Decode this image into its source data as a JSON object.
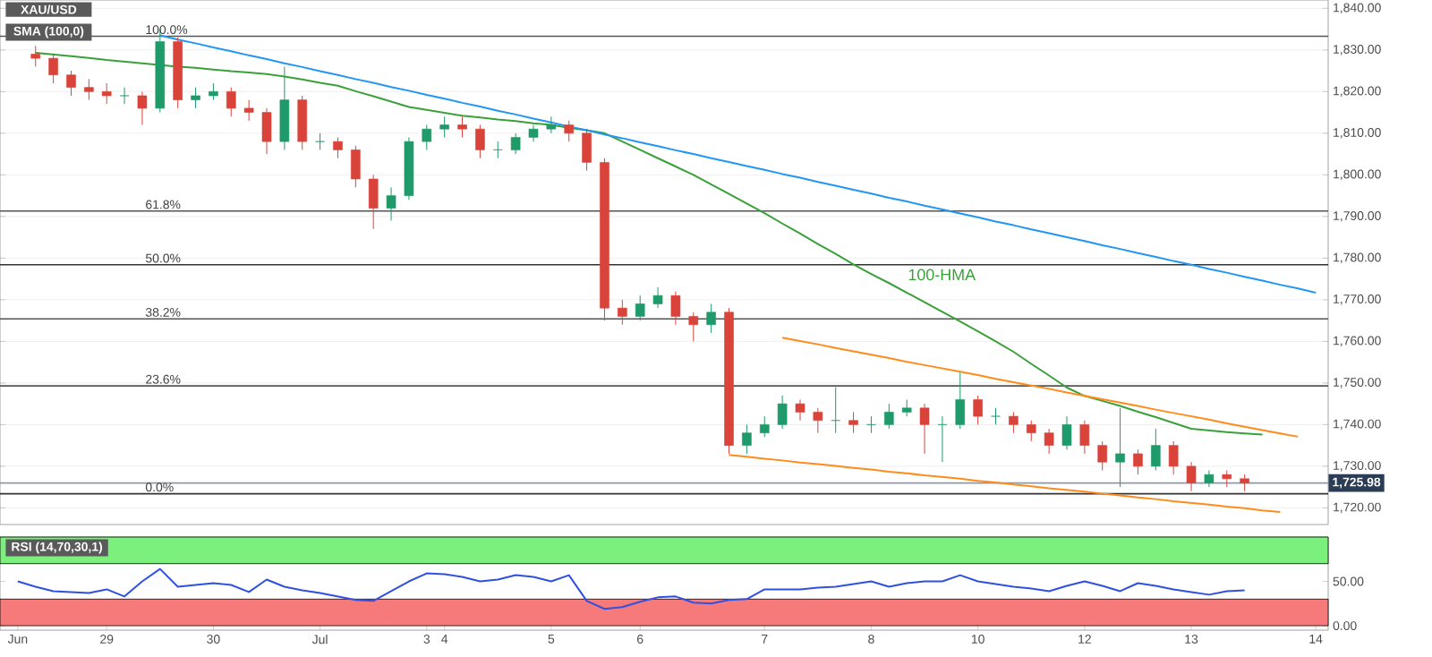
{
  "chart_data": [
    {
      "type": "candlestick",
      "categories": [
        null,
        null,
        null,
        null,
        null,
        null,
        null,
        null,
        null,
        null,
        null,
        null,
        null,
        null,
        null,
        null,
        null,
        null,
        null,
        null,
        null,
        null,
        null,
        null,
        null,
        null,
        null,
        null,
        null,
        null,
        null,
        null,
        null,
        null,
        null,
        null,
        null,
        null,
        null,
        null,
        null,
        null,
        null,
        null,
        null,
        null,
        null,
        null,
        null,
        null,
        null,
        null,
        null,
        null,
        null,
        null,
        null,
        null,
        null,
        null,
        null,
        null,
        null,
        null,
        null,
        null,
        null,
        null,
        null,
        null,
        null,
        null,
        null
      ],
      "ohlc": [
        [
          1829,
          1831,
          1826,
          1828
        ],
        [
          1828,
          1829,
          1822,
          1824
        ],
        [
          1824,
          1825,
          1819,
          1821
        ],
        [
          1821,
          1823,
          1818,
          1820
        ],
        [
          1820,
          1822,
          1817,
          1819
        ],
        [
          1819,
          1821,
          1817,
          1819
        ],
        [
          1819,
          1820,
          1812,
          1816
        ],
        [
          1816,
          1835,
          1815,
          1832
        ],
        [
          1832,
          1833,
          1816,
          1818
        ],
        [
          1818,
          1821,
          1816,
          1819
        ],
        [
          1819,
          1822,
          1818,
          1820
        ],
        [
          1820,
          1821,
          1814,
          1816
        ],
        [
          1816,
          1818,
          1813,
          1815
        ],
        [
          1815,
          1816,
          1805,
          1808
        ],
        [
          1808,
          1826,
          1806,
          1818
        ],
        [
          1818,
          1819,
          1806,
          1808
        ],
        [
          1808,
          1810,
          1806,
          1808
        ],
        [
          1808,
          1809,
          1804,
          1806
        ],
        [
          1806,
          1807,
          1797,
          1799
        ],
        [
          1799,
          1800,
          1787,
          1792
        ],
        [
          1792,
          1797,
          1789,
          1795
        ],
        [
          1795,
          1809,
          1794,
          1808
        ],
        [
          1808,
          1812,
          1806,
          1811
        ],
        [
          1811,
          1814,
          1809,
          1812
        ],
        [
          1812,
          1814,
          1809,
          1811
        ],
        [
          1811,
          1812,
          1804,
          1806
        ],
        [
          1806,
          1808,
          1804,
          1806
        ],
        [
          1806,
          1810,
          1805,
          1809
        ],
        [
          1809,
          1812,
          1808,
          1811
        ],
        [
          1811,
          1814,
          1810,
          1812
        ],
        [
          1812,
          1813,
          1808,
          1810
        ],
        [
          1810,
          1811,
          1801,
          1803
        ],
        [
          1803,
          1804,
          1765,
          1768
        ],
        [
          1768,
          1770,
          1764,
          1766
        ],
        [
          1766,
          1771,
          1765,
          1769
        ],
        [
          1769,
          1773,
          1768,
          1771
        ],
        [
          1771,
          1772,
          1764,
          1766
        ],
        [
          1766,
          1767,
          1760,
          1764
        ],
        [
          1764,
          1769,
          1762,
          1767
        ],
        [
          1767,
          1768,
          1733,
          1735
        ],
        [
          1735,
          1740,
          1733,
          1738
        ],
        [
          1738,
          1742,
          1737,
          1740
        ],
        [
          1740,
          1747,
          1739,
          1745
        ],
        [
          1745,
          1746,
          1741,
          1743
        ],
        [
          1743,
          1744,
          1738,
          1741
        ],
        [
          1741,
          1749,
          1738,
          1741
        ],
        [
          1741,
          1743,
          1738,
          1740
        ],
        [
          1740,
          1742,
          1738,
          1740
        ],
        [
          1740,
          1745,
          1739,
          1743
        ],
        [
          1743,
          1746,
          1742,
          1744
        ],
        [
          1744,
          1745,
          1733,
          1740
        ],
        [
          1740,
          1742,
          1731,
          1740
        ],
        [
          1740,
          1752.5,
          1739,
          1746
        ],
        [
          1746,
          1747,
          1740,
          1742
        ],
        [
          1742,
          1744,
          1740,
          1742
        ],
        [
          1742,
          1743,
          1738,
          1740
        ],
        [
          1740,
          1741,
          1736,
          1738
        ],
        [
          1738,
          1739,
          1733,
          1735
        ],
        [
          1735,
          1742,
          1734,
          1740
        ],
        [
          1740,
          1741,
          1733,
          1735
        ],
        [
          1735,
          1736,
          1729,
          1731
        ],
        [
          1731,
          1744,
          1725,
          1733
        ],
        [
          1733,
          1734,
          1728,
          1730
        ],
        [
          1730,
          1739,
          1729,
          1735
        ],
        [
          1735,
          1736,
          1728,
          1730
        ],
        [
          1730,
          1731,
          1724,
          1726
        ],
        [
          1726,
          1729,
          1725,
          1728
        ],
        [
          1728,
          1729,
          1725,
          1727
        ],
        [
          1727,
          1728,
          1724,
          1725.98
        ],
        null,
        null,
        null,
        null
      ],
      "series": [
        {
          "type": "line",
          "name": "100-HMA",
          "color": "#3aa13a",
          "values": [
            1829.3,
            1828.9,
            1828.5,
            1828.1,
            1827.6,
            1827.2,
            1826.8,
            1826.4,
            1826.0,
            1825.7,
            1825.3,
            1824.9,
            1824.6,
            1824.2,
            1823.6,
            1822.9,
            1822.1,
            1821.4,
            1820.1,
            1818.9,
            1817.6,
            1816.3,
            1815.6,
            1814.9,
            1814.2,
            1813.8,
            1813.3,
            1812.9,
            1812.4,
            1812,
            1811.3,
            1810.7,
            1810,
            1808,
            1806,
            1804,
            1802,
            1800,
            1797.7,
            1795.4,
            1793.1,
            1790.8,
            1788.3,
            1785.9,
            1783.4,
            1781,
            1778.5,
            1776.2,
            1774,
            1771.7,
            1769.4,
            1767.1,
            1764.8,
            1762.4,
            1760,
            1757.5,
            1754.6,
            1751.8,
            1748.9,
            1746.9,
            1745.7,
            1744.5,
            1743.1,
            1741.8,
            1740.4,
            1739,
            1738.6,
            1738.2,
            1737.9,
            1737.6,
            null,
            null,
            null
          ]
        },
        {
          "type": "line",
          "color": "#2196f3",
          "values": [
            null,
            null,
            null,
            null,
            null,
            null,
            null,
            1833.5,
            1832.5,
            1831.6,
            1830.6,
            1829.7,
            1828.7,
            1827.8,
            1826.8,
            1825.9,
            1824.9,
            1824.0,
            1823.0,
            1822.1,
            1821.1,
            1820.2,
            1819.2,
            1818.3,
            1817.3,
            1816.4,
            1815.4,
            1814.5,
            1813.5,
            1812.6,
            1811.6,
            1810.7,
            1809.7,
            1808.8,
            1807.8,
            1806.9,
            1805.9,
            1805.0,
            1804.0,
            1803.1,
            1802.1,
            1801.2,
            1800.2,
            1799.3,
            1798.3,
            1797.4,
            1796.4,
            1795.5,
            1794.5,
            1793.6,
            1792.6,
            1791.7,
            1790.7,
            1789.8,
            1788.8,
            1787.9,
            1786.9,
            1786.0,
            1785.0,
            1784.1,
            1783.1,
            1782.2,
            1781.2,
            1780.3,
            1779.3,
            1778.4,
            1777.4,
            1776.5,
            1775.5,
            1774.6,
            1773.6,
            1772.7,
            1771.7
          ]
        },
        {
          "type": "line",
          "color": "#ff8c1a",
          "values": [
            null,
            null,
            null,
            null,
            null,
            null,
            null,
            null,
            null,
            null,
            null,
            null,
            null,
            null,
            null,
            null,
            null,
            null,
            null,
            null,
            null,
            null,
            null,
            null,
            null,
            null,
            null,
            null,
            null,
            null,
            null,
            null,
            null,
            null,
            null,
            null,
            null,
            null,
            null,
            null,
            null,
            null,
            1760.9,
            1760.1,
            1759.3,
            1758.4,
            1757.6,
            1756.8,
            1756.0,
            1755.1,
            1754.3,
            1753.5,
            1752.7,
            1751.9,
            1751.0,
            1750.2,
            1749.4,
            1748.6,
            1747.7,
            1746.9,
            1746.1,
            1745.3,
            1744.5,
            1743.6,
            1742.8,
            1742.0,
            1741.2,
            1740.3,
            1739.5,
            1738.7,
            1737.9,
            1737.1,
            null
          ]
        },
        {
          "type": "line",
          "color": "#ff8c1a",
          "values": [
            null,
            null,
            null,
            null,
            null,
            null,
            null,
            null,
            null,
            null,
            null,
            null,
            null,
            null,
            null,
            null,
            null,
            null,
            null,
            null,
            null,
            null,
            null,
            null,
            null,
            null,
            null,
            null,
            null,
            null,
            null,
            null,
            null,
            null,
            null,
            null,
            null,
            null,
            null,
            1732.7,
            1732.3,
            1731.8,
            1731.4,
            1730.9,
            1730.5,
            1730.1,
            1729.6,
            1729.2,
            1728.7,
            1728.3,
            1727.8,
            1727.4,
            1727.0,
            1726.5,
            1726.1,
            1725.6,
            1725.2,
            1724.7,
            1724.3,
            1723.9,
            1723.4,
            1723.0,
            1722.5,
            1722.1,
            1721.6,
            1721.2,
            1720.8,
            1720.3,
            1719.9,
            1719.4,
            1719.0,
            null,
            null
          ]
        }
      ],
      "ref_lines": [
        {
          "axis": "y",
          "value": 1833.3,
          "color": "#555555"
        },
        {
          "axis": "y",
          "value": 1791.3,
          "color": "#555555"
        },
        {
          "axis": "y",
          "value": 1778.4,
          "color": "#333333"
        },
        {
          "axis": "y",
          "value": 1765.4,
          "color": "#555555"
        },
        {
          "axis": "y",
          "value": 1749.3,
          "color": "#555555"
        },
        {
          "axis": "y",
          "value": 1723.4,
          "color": "#333333"
        },
        {
          "axis": "y",
          "value": 1725.98,
          "label": "1,725.98",
          "color": "#8a9bb0"
        }
      ],
      "annotations": [
        "XAU/USD",
        "SMA (100,0)",
        {
          "text": "100.0%",
          "y": 1833.3
        },
        {
          "text": "61.8%",
          "y": 1791.3
        },
        {
          "text": "50.0%",
          "y": 1778.4
        },
        {
          "text": "38.2%",
          "y": 1765.4
        },
        {
          "text": "23.6%",
          "y": 1749.3
        },
        {
          "text": "0.0%",
          "y": 1723.4
        }
      ],
      "ylim": [
        1716,
        1842
      ],
      "yticks": [
        {
          "value": 1720,
          "label": "1,720.00"
        },
        {
          "value": 1730,
          "label": "1,730.00"
        },
        {
          "value": 1740,
          "label": "1,740.00"
        },
        {
          "value": 1750,
          "label": "1,750.00"
        },
        {
          "value": 1760,
          "label": "1,760.00"
        },
        {
          "value": 1770,
          "label": "1,770.00"
        },
        {
          "value": 1780,
          "label": "1,780.00"
        },
        {
          "value": 1790,
          "label": "1,790.00"
        },
        {
          "value": 1800,
          "label": "1,800.00"
        },
        {
          "value": 1810,
          "label": "1,810.00"
        },
        {
          "value": 1820,
          "label": "1,820.00"
        },
        {
          "value": 1830,
          "label": "1,830.00"
        },
        {
          "value": 1840,
          "label": "1,840.00"
        }
      ],
      "tick_labels": "y",
      "grid": "y"
    },
    {
      "type": "line",
      "categories": [
        "Jun",
        null,
        null,
        null,
        null,
        "29",
        null,
        null,
        null,
        null,
        null,
        "30",
        null,
        null,
        null,
        null,
        null,
        "Jul",
        null,
        null,
        null,
        null,
        null,
        "3",
        "4",
        null,
        null,
        null,
        null,
        null,
        "5",
        null,
        null,
        null,
        null,
        "6",
        null,
        null,
        null,
        null,
        null,
        null,
        "7",
        null,
        null,
        null,
        null,
        null,
        "8",
        null,
        null,
        null,
        null,
        null,
        "10",
        null,
        null,
        null,
        null,
        null,
        "12",
        null,
        null,
        null,
        null,
        null,
        "13",
        null,
        null,
        null,
        null,
        null,
        null,
        "14"
      ],
      "series": [
        {
          "color": "#3050e0",
          "values": [
            50,
            44,
            39,
            38,
            37,
            41,
            33,
            50,
            64,
            44,
            46,
            48,
            46,
            38,
            52,
            44,
            40,
            37,
            33,
            29,
            28,
            39,
            50,
            59,
            58,
            55,
            50,
            52,
            57,
            55,
            50,
            57,
            28,
            19,
            21,
            27,
            32,
            33,
            26,
            25,
            29,
            30,
            41,
            41,
            41,
            43,
            44,
            47,
            50,
            44,
            48,
            50,
            50,
            57,
            50,
            47,
            44,
            42,
            39,
            45,
            50,
            45,
            39,
            48,
            45,
            41,
            38,
            35,
            39,
            40,
            null,
            null,
            null,
            null
          ]
        }
      ],
      "bands": [
        {
          "axis": "y",
          "from": 70,
          "to": 100,
          "color": "#7cf07c"
        },
        {
          "axis": "y",
          "from": 0,
          "to": 30,
          "color": "#f77a7a"
        }
      ],
      "annotations": [
        "RSI (14,70,30,1)"
      ],
      "ylim": [
        -5,
        100
      ],
      "yticks": [
        {
          "value": 50,
          "label": "50.00"
        },
        {
          "value": 0,
          "label": "0.00"
        }
      ]
    }
  ]
}
